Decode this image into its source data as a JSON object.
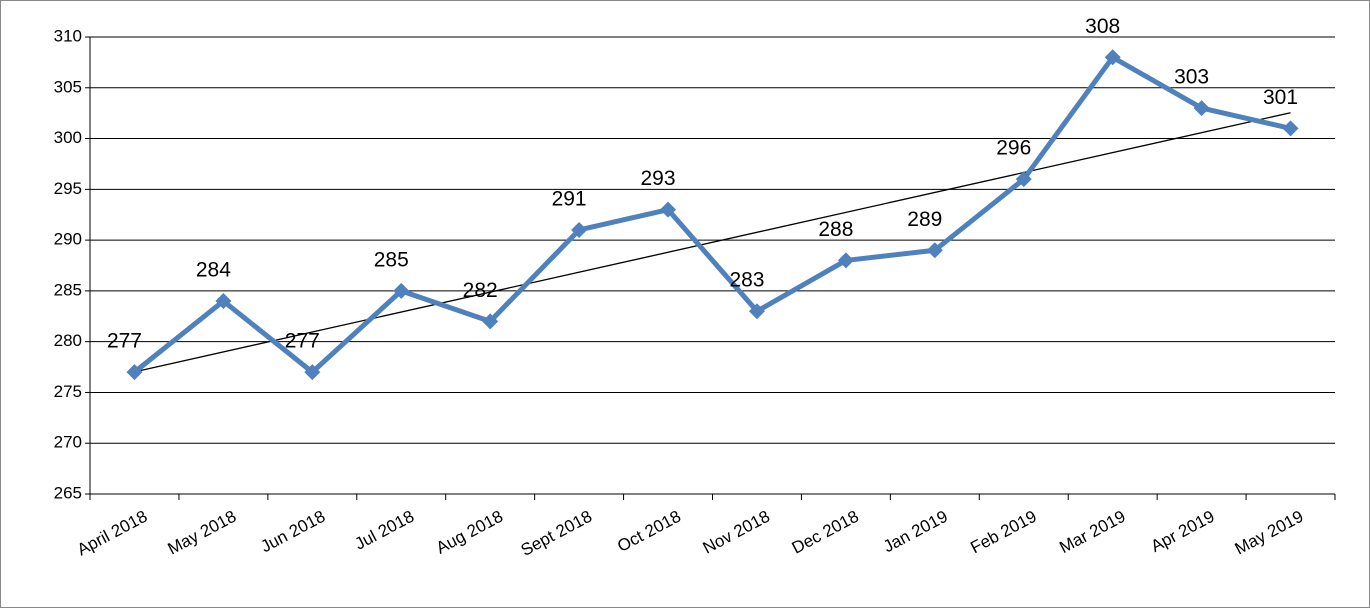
{
  "chart_data": {
    "type": "line",
    "categories": [
      "April 2018",
      "May 2018",
      "Jun 2018",
      "Jul 2018",
      "Aug 2018",
      "Sept 2018",
      "Oct 2018",
      "Nov 2018",
      "Dec 2018",
      "Jan 2019",
      "Feb 2019",
      "Mar 2019",
      "Apr 2019",
      "May 2019"
    ],
    "series": [
      {
        "color": "#4f81bd",
        "values": [
          277,
          284,
          277,
          285,
          282,
          291,
          293,
          283,
          288,
          289,
          296,
          308,
          303,
          301
        ]
      }
    ],
    "ylim": [
      265,
      310
    ],
    "yticks": [
      265,
      270,
      275,
      280,
      285,
      290,
      295,
      300,
      305,
      310
    ],
    "grid": true,
    "trendline": true,
    "data_labels": true
  }
}
